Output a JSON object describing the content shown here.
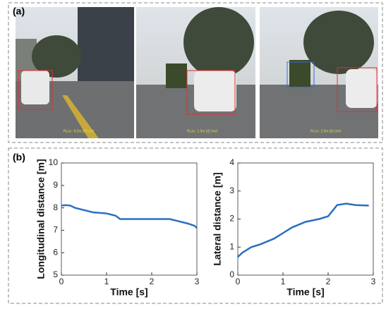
{
  "panel_labels": [
    "(a)",
    "(b)"
  ],
  "image_captions": [
    "RLoc: 8.0m [0] Und",
    "RLoc: 1.5m [0] Und",
    "RLoc: 2.5m [0] Und"
  ],
  "chart_data": [
    {
      "type": "line",
      "ylabel": "Longitudinal distance [m]",
      "xlabel": "Time [s]",
      "x": [
        0,
        0.1,
        0.2,
        0.3,
        0.5,
        0.7,
        1.0,
        1.2,
        1.3,
        1.6,
        2.0,
        2.4,
        2.6,
        2.8,
        2.95,
        3.0
      ],
      "values": [
        8.1,
        8.12,
        8.1,
        8.0,
        7.9,
        7.8,
        7.75,
        7.65,
        7.5,
        7.5,
        7.5,
        7.5,
        7.4,
        7.3,
        7.2,
        7.1
      ],
      "color": "#2a6fbf",
      "xlim": [
        0,
        3
      ],
      "ylim": [
        5,
        10
      ],
      "xticks": [
        0,
        1,
        2,
        3
      ],
      "yticks": [
        5,
        6,
        7,
        8,
        9,
        10
      ]
    },
    {
      "type": "line",
      "ylabel": "Lateral distance [m]",
      "xlabel": "Time [s]",
      "x": [
        0,
        0.1,
        0.2,
        0.3,
        0.5,
        0.8,
        1.0,
        1.2,
        1.5,
        1.8,
        2.0,
        2.1,
        2.2,
        2.4,
        2.6,
        2.9
      ],
      "values": [
        0.65,
        0.8,
        0.9,
        1.0,
        1.1,
        1.3,
        1.5,
        1.7,
        1.9,
        2.0,
        2.1,
        2.3,
        2.5,
        2.55,
        2.5,
        2.48
      ],
      "color": "#2a6fbf",
      "xlim": [
        0,
        3
      ],
      "ylim": [
        0,
        4
      ],
      "xticks": [
        0,
        1,
        2,
        3
      ],
      "yticks": [
        0,
        1,
        2,
        3,
        4
      ]
    }
  ]
}
